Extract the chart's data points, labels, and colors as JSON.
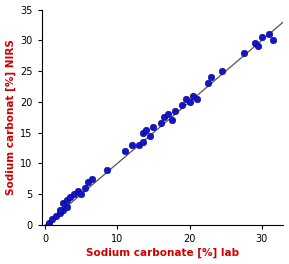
{
  "x_lab": [
    0.5,
    1.0,
    1.5,
    2.0,
    2.5,
    3.0,
    2.0,
    2.5,
    3.0,
    3.5,
    4.0,
    4.5,
    5.0,
    5.5,
    6.0,
    6.5,
    8.5,
    11.0,
    12.0,
    13.0,
    13.5,
    13.5,
    14.0,
    14.5,
    15.0,
    16.0,
    16.5,
    17.0,
    17.5,
    18.0,
    19.0,
    19.5,
    20.0,
    20.5,
    21.0,
    22.5,
    23.0,
    24.5,
    27.5,
    29.0,
    29.5,
    30.0,
    31.0,
    31.5
  ],
  "y_nirs": [
    0.3,
    1.0,
    1.5,
    2.0,
    2.5,
    3.0,
    2.5,
    3.5,
    4.0,
    4.5,
    5.0,
    5.5,
    5.0,
    6.0,
    7.0,
    7.5,
    9.0,
    12.0,
    13.0,
    13.0,
    13.5,
    15.0,
    15.5,
    14.5,
    16.0,
    16.5,
    17.5,
    18.0,
    17.0,
    18.5,
    19.5,
    20.5,
    20.0,
    21.0,
    20.5,
    23.0,
    24.0,
    25.0,
    28.0,
    29.5,
    29.0,
    30.5,
    31.0,
    30.0
  ],
  "dot_color": "#1515C8",
  "dot_edgecolor": "#000080",
  "dot_size": 22,
  "line_color": "#555555",
  "xlabel": "Sodium carbonate [%] lab",
  "ylabel": "Sodium carbonat [%] NIRS",
  "xlabel_color": "#CC0000",
  "ylabel_color": "#CC0000",
  "xlabel_fontsize": 7.5,
  "ylabel_fontsize": 7.5,
  "xlim": [
    -0.5,
    33
  ],
  "ylim": [
    0,
    35
  ],
  "xticks": [
    0,
    10,
    20,
    30
  ],
  "yticks": [
    0,
    5,
    10,
    15,
    20,
    25,
    30,
    35
  ],
  "tick_fontsize": 7,
  "background_color": "#ffffff"
}
